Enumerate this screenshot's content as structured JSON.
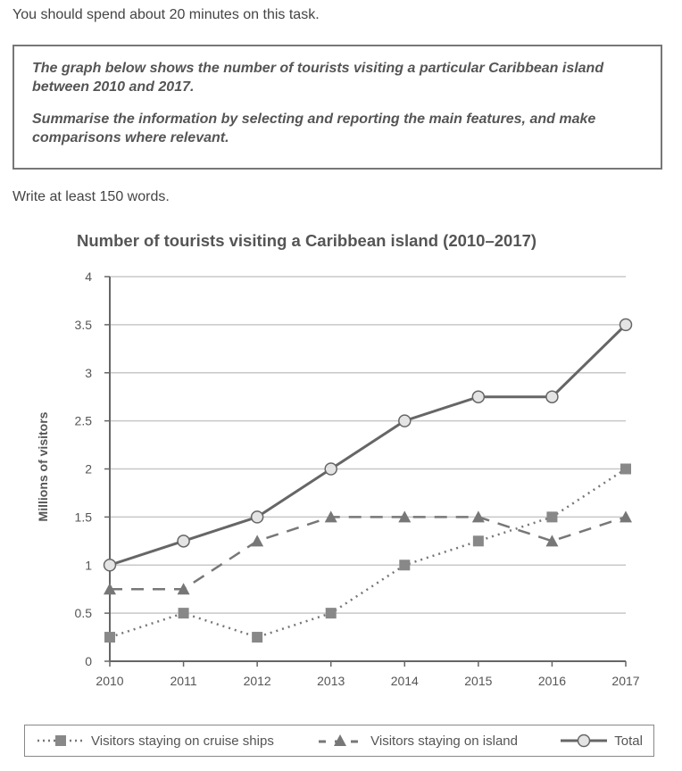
{
  "intro": "You should spend about 20 minutes on this task.",
  "task": {
    "paragraph1": "The graph below shows the number of tourists visiting a particular Caribbean island between 2010 and 2017.",
    "paragraph2": "Summarise the information by selecting and reporting the main features, and make comparisons where relevant."
  },
  "word_count": "Write at least 150 words.",
  "chart_data": {
    "type": "line",
    "title": "Number of tourists visiting a Caribbean island (2010–2017)",
    "xlabel": "",
    "ylabel": "Millions of visitors",
    "x": [
      "2010",
      "2011",
      "2012",
      "2013",
      "2014",
      "2015",
      "2016",
      "2017"
    ],
    "ylim": [
      0,
      4
    ],
    "yticks": [
      "0",
      "0.5",
      "1",
      "1.5",
      "2",
      "2.5",
      "3",
      "3.5",
      "4"
    ],
    "grid": true,
    "legend_position": "bottom",
    "series": [
      {
        "name": "Visitors staying on cruise ships",
        "style": "dotted",
        "marker": "square",
        "color": "#777777",
        "values": [
          0.25,
          0.5,
          0.25,
          0.5,
          1,
          1.25,
          1.5,
          2
        ]
      },
      {
        "name": "Visitors staying on island",
        "style": "dashed",
        "marker": "triangle",
        "color": "#777777",
        "values": [
          0.75,
          0.75,
          1.25,
          1.5,
          1.5,
          1.5,
          1.25,
          1.5
        ]
      },
      {
        "name": "Total",
        "style": "solid",
        "marker": "circle",
        "color": "#666666",
        "values": [
          1,
          1.25,
          1.5,
          2,
          2.5,
          2.75,
          2.75,
          3.5
        ]
      }
    ]
  }
}
